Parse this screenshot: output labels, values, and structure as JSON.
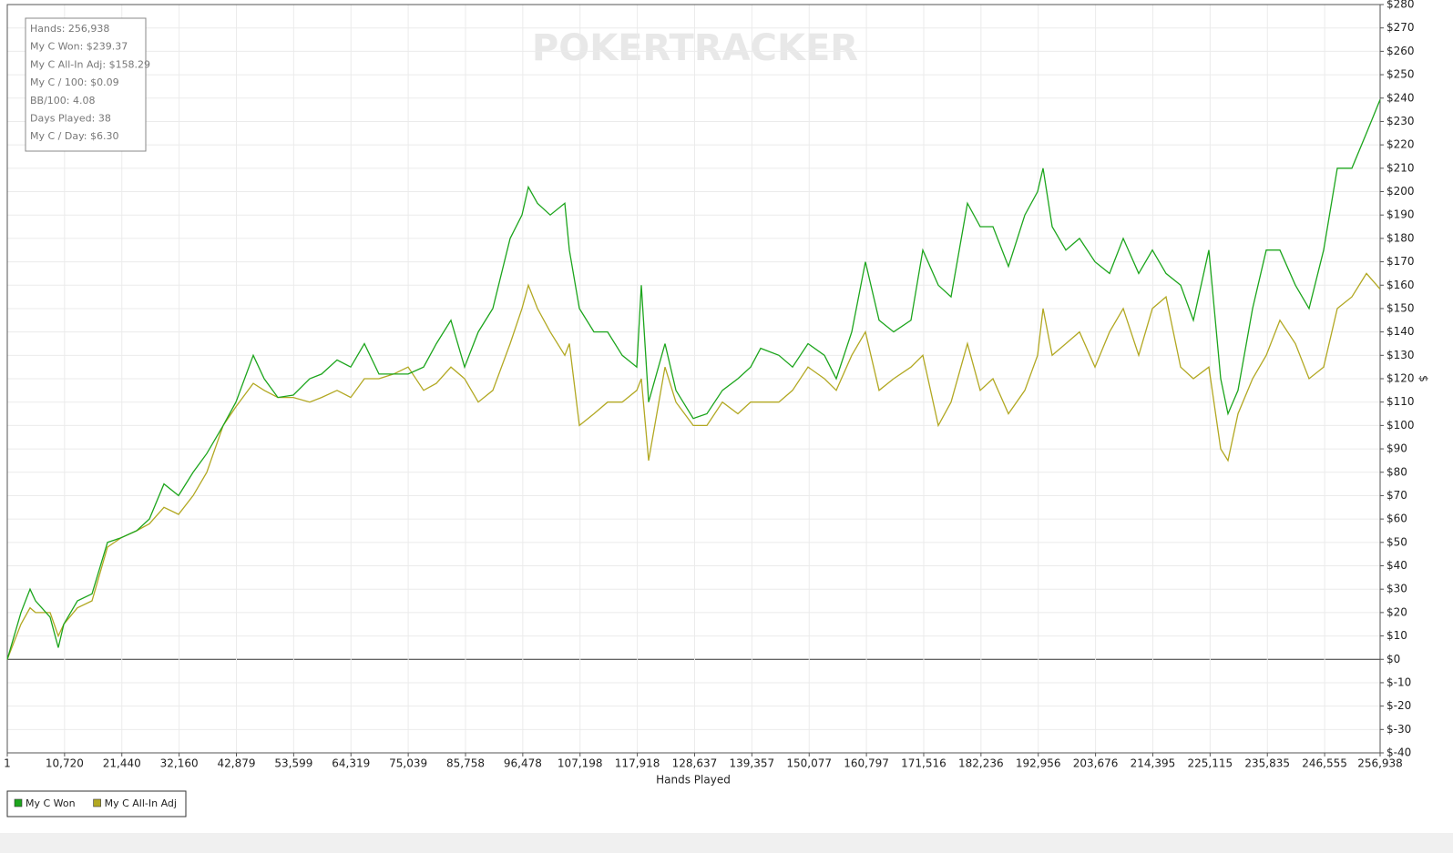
{
  "chart_data": {
    "type": "line",
    "watermark": "POKERTRACKER",
    "stats": [
      "Hands: 256,938",
      "My C Won: $239.37",
      "My C All-In Adj: $158.29",
      "My C / 100: $0.09",
      "BB/100: 4.08",
      "Days Played: 38",
      "My C / Day: $6.30"
    ],
    "x_label": "Hands Played",
    "y_label": "$",
    "grid": true,
    "legend": "bottom-left",
    "xlim": [
      1,
      256938
    ],
    "xticks": [
      1,
      {
        "value": 10720,
        "label": "10,720"
      },
      {
        "value": 21440,
        "label": "21,440"
      },
      {
        "value": 32160,
        "label": "32,160"
      },
      {
        "value": 42879,
        "label": "42,879"
      },
      {
        "value": 53599,
        "label": "53,599"
      },
      {
        "value": 64319,
        "label": "64,319"
      },
      {
        "value": 75039,
        "label": "75,039"
      },
      {
        "value": 85758,
        "label": "85,758"
      },
      {
        "value": 96478,
        "label": "96,478"
      },
      {
        "value": 107198,
        "label": "107,198"
      },
      {
        "value": 117918,
        "label": "117,918"
      },
      {
        "value": 128637,
        "label": "128,637"
      },
      {
        "value": 139357,
        "label": "139,357"
      },
      {
        "value": 150077,
        "label": "150,077"
      },
      {
        "value": 160797,
        "label": "160,797"
      },
      {
        "value": 171516,
        "label": "171,516"
      },
      {
        "value": 182236,
        "label": "182,236"
      },
      {
        "value": 192956,
        "label": "192,956"
      },
      {
        "value": 203676,
        "label": "203,676"
      },
      {
        "value": 214395,
        "label": "214,395"
      },
      {
        "value": 225115,
        "label": "225,115"
      },
      {
        "value": 235835,
        "label": "235,835"
      },
      {
        "value": 246555,
        "label": "246,555"
      },
      {
        "value": 256938,
        "label": "256,938"
      }
    ],
    "ylim": [
      -40,
      280
    ],
    "yticks": [
      {
        "value": 280,
        "label": "$280"
      },
      {
        "value": 270,
        "label": "$270"
      },
      {
        "value": 260,
        "label": "$260"
      },
      {
        "value": 250,
        "label": "$250"
      },
      {
        "value": 240,
        "label": "$240"
      },
      {
        "value": 230,
        "label": "$230"
      },
      {
        "value": 220,
        "label": "$220"
      },
      {
        "value": 210,
        "label": "$210"
      },
      {
        "value": 200,
        "label": "$200"
      },
      {
        "value": 190,
        "label": "$190"
      },
      {
        "value": 180,
        "label": "$180"
      },
      {
        "value": 170,
        "label": "$170"
      },
      {
        "value": 160,
        "label": "$160"
      },
      {
        "value": 150,
        "label": "$150"
      },
      {
        "value": 140,
        "label": "$140"
      },
      {
        "value": 130,
        "label": "$130"
      },
      {
        "value": 120,
        "label": "$120"
      },
      {
        "value": 110,
        "label": "$110"
      },
      {
        "value": 100,
        "label": "$100"
      },
      {
        "value": 90,
        "label": "$90"
      },
      {
        "value": 80,
        "label": "$80"
      },
      {
        "value": 70,
        "label": "$70"
      },
      {
        "value": 60,
        "label": "$60"
      },
      {
        "value": 50,
        "label": "$50"
      },
      {
        "value": 40,
        "label": "$40"
      },
      {
        "value": 30,
        "label": "$30"
      },
      {
        "value": 20,
        "label": "$20"
      },
      {
        "value": 10,
        "label": "$10"
      },
      {
        "value": 0,
        "label": "$0"
      },
      {
        "value": -10,
        "label": "$-10"
      },
      {
        "value": -20,
        "label": "$-20"
      },
      {
        "value": -30,
        "label": "$-30"
      },
      {
        "value": -40,
        "label": "$-40"
      }
    ],
    "x": [
      1,
      2558,
      4263,
      5286,
      8014,
      9548,
      10571,
      13129,
      15857,
      18755,
      21313,
      24211,
      26598,
      29326,
      32054,
      34782,
      37340,
      40409,
      42796,
      46035,
      48081,
      50639,
      53538,
      56606,
      58823,
      61721,
      64279,
      66836,
      69564,
      72292,
      75020,
      77919,
      80306,
      83034,
      85591,
      88149,
      90877,
      94116,
      96333,
      97526,
      99231,
      101618,
      104346,
      105199,
      107074,
      109802,
      112360,
      115088,
      117816,
      118668,
      120032,
      123101,
      125147,
      128387,
      130944,
      133843,
      136741,
      139128,
      141004,
      144414,
      146971,
      149870,
      152939,
      155155,
      158054,
      160612,
      163169,
      165897,
      169137,
      171353,
      174252,
      176639,
      179708,
      182095,
      184482,
      187380,
      190449,
      192836,
      193859,
      195564,
      198122,
      200679,
      203578,
      206305,
      208863,
      211761,
      214319,
      216876,
      219604,
      221991,
      224890,
      227106,
      228470,
      230346,
      233074,
      235632,
      238189,
      241088,
      243645,
      246373,
      248930,
      251658,
      254386,
      256938
    ],
    "series": [
      {
        "name": "My C Won",
        "color": "#1ca51c",
        "values": [
          0,
          20,
          30,
          25,
          18,
          5,
          15,
          25,
          28,
          50,
          52,
          55,
          60,
          75,
          70,
          80,
          88,
          100,
          110,
          130,
          120,
          112,
          113,
          120,
          122,
          128,
          125,
          135,
          122,
          122,
          122,
          125,
          135,
          145,
          125,
          140,
          150,
          180,
          190,
          202,
          195,
          190,
          195,
          175,
          150,
          140,
          140,
          130,
          125,
          160,
          110,
          135,
          115,
          103,
          105,
          115,
          120,
          125,
          133,
          130,
          125,
          135,
          130,
          120,
          140,
          170,
          145,
          140,
          145,
          175,
          160,
          155,
          195,
          185,
          185,
          168,
          190,
          200,
          210,
          185,
          175,
          180,
          170,
          165,
          180,
          165,
          175,
          165,
          160,
          145,
          175,
          120,
          105,
          115,
          150,
          175,
          175,
          160,
          150,
          175,
          210,
          210,
          225,
          239.37
        ]
      },
      {
        "name": "My C All-In Adj",
        "color": "#b2a822",
        "values": [
          0,
          15,
          22,
          20,
          20,
          10,
          15,
          22,
          25,
          48,
          52,
          55,
          58,
          65,
          62,
          70,
          80,
          100,
          108,
          118,
          115,
          112,
          112,
          110,
          112,
          115,
          112,
          120,
          120,
          122,
          125,
          115,
          118,
          125,
          120,
          110,
          115,
          135,
          150,
          160,
          150,
          140,
          130,
          135,
          100,
          105,
          110,
          110,
          115,
          120,
          85,
          125,
          110,
          100,
          100,
          110,
          105,
          110,
          110,
          110,
          115,
          125,
          120,
          115,
          130,
          140,
          115,
          120,
          125,
          130,
          100,
          110,
          135,
          115,
          120,
          105,
          115,
          130,
          150,
          130,
          135,
          140,
          125,
          140,
          150,
          130,
          150,
          155,
          125,
          120,
          125,
          90,
          85,
          105,
          120,
          130,
          145,
          135,
          120,
          125,
          150,
          155,
          165,
          158.29
        ]
      }
    ]
  }
}
